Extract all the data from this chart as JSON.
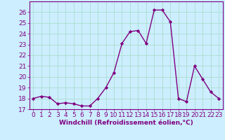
{
  "x": [
    0,
    1,
    2,
    3,
    4,
    5,
    6,
    7,
    8,
    9,
    10,
    11,
    12,
    13,
    14,
    15,
    16,
    17,
    18,
    19,
    20,
    21,
    22,
    23
  ],
  "y": [
    18.0,
    18.2,
    18.1,
    17.5,
    17.6,
    17.5,
    17.3,
    17.3,
    18.0,
    19.0,
    20.4,
    23.1,
    24.2,
    24.3,
    23.1,
    26.2,
    26.2,
    25.1,
    18.0,
    17.7,
    21.0,
    19.8,
    18.6,
    18.0
  ],
  "line_color": "#800080",
  "marker": "D",
  "marker_size": 2.2,
  "linewidth": 1.0,
  "bg_color": "#cceeff",
  "grid_color": "#aaddcc",
  "xlabel": "Windchill (Refroidissement éolien,°C)",
  "xlabel_color": "#800080",
  "tick_color": "#800080",
  "ylim": [
    17,
    27
  ],
  "xlim": [
    -0.5,
    23.5
  ],
  "yticks": [
    17,
    18,
    19,
    20,
    21,
    22,
    23,
    24,
    25,
    26
  ],
  "xticks": [
    0,
    1,
    2,
    3,
    4,
    5,
    6,
    7,
    8,
    9,
    10,
    11,
    12,
    13,
    14,
    15,
    16,
    17,
    18,
    19,
    20,
    21,
    22,
    23
  ],
  "xlabel_fontsize": 6.5,
  "tick_fontsize": 6.5,
  "fig_bg_color": "#cceeff"
}
